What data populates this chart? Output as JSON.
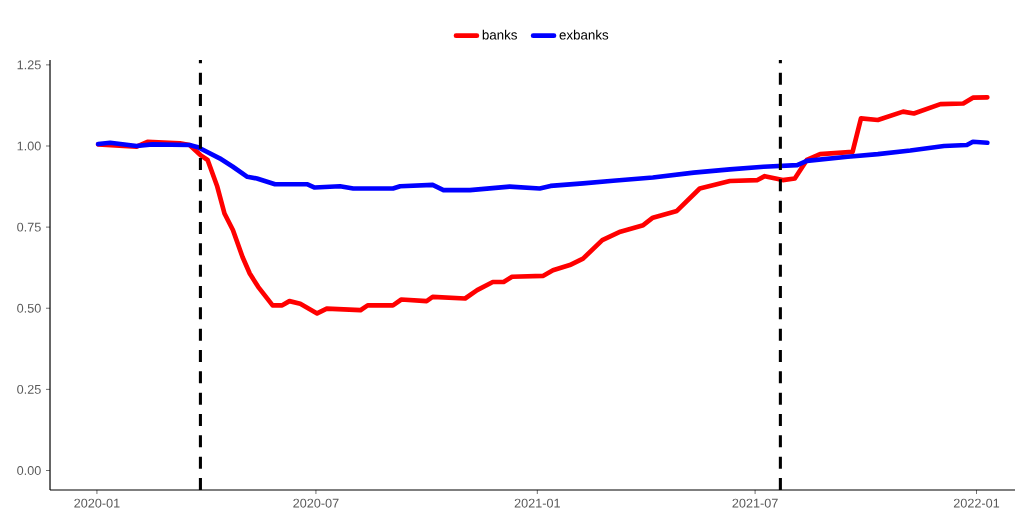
{
  "chart_data": {
    "type": "line",
    "legend": "top",
    "grid": false,
    "marker": "none",
    "line_style": "solid",
    "xlim": [
      "2019-11-23",
      "2022-02-02"
    ],
    "xticks": [
      {
        "value": "2020-01-01",
        "label": "2020-01"
      },
      {
        "value": "2020-07-01",
        "label": "2020-07"
      },
      {
        "value": "2021-01-01",
        "label": "2021-01"
      },
      {
        "value": "2021-07-01",
        "label": "2021-07"
      },
      {
        "value": "2022-01-01",
        "label": "2022-01"
      }
    ],
    "ylim": [
      -0.06,
      1.265
    ],
    "yticks": [
      {
        "value": 0,
        "label": "0.00"
      },
      {
        "value": 0.25,
        "label": "0.25"
      },
      {
        "value": 0.5,
        "label": "0.50"
      },
      {
        "value": 0.75,
        "label": "0.75"
      },
      {
        "value": 1,
        "label": "1.00"
      },
      {
        "value": 1.25,
        "label": "1.25"
      }
    ],
    "ref_lines": [
      {
        "axis": "x",
        "value": "2020-03-27",
        "color": "#000000",
        "line_style": "dashed"
      },
      {
        "axis": "x",
        "value": "2021-07-22",
        "color": "#000000",
        "line_style": "dashed"
      }
    ],
    "series": [
      {
        "name": "banks",
        "color": "#ff0000",
        "x": [
          "2020-01-02",
          "2020-02-03",
          "2020-02-12",
          "2020-03-10",
          "2020-03-18",
          "2020-03-27",
          "2020-04-02",
          "2020-04-10",
          "2020-04-16",
          "2020-04-23",
          "2020-05-01",
          "2020-05-07",
          "2020-05-14",
          "2020-05-26",
          "2020-06-03",
          "2020-06-09",
          "2020-06-18",
          "2020-07-02",
          "2020-07-10",
          "2020-08-07",
          "2020-08-13",
          "2020-09-03",
          "2020-09-10",
          "2020-10-01",
          "2020-10-06",
          "2020-11-02",
          "2020-11-12",
          "2020-11-25",
          "2020-12-04",
          "2020-12-11",
          "2021-01-06",
          "2021-01-14",
          "2021-01-28",
          "2021-02-08",
          "2021-02-24",
          "2021-03-11",
          "2021-03-30",
          "2021-04-07",
          "2021-04-27",
          "2021-05-16",
          "2021-06-10",
          "2021-07-03",
          "2021-07-09",
          "2021-07-24",
          "2021-08-03",
          "2021-08-13",
          "2021-08-24",
          "2021-09-20",
          "2021-09-27",
          "2021-10-11",
          "2021-11-01",
          "2021-11-10",
          "2021-12-02",
          "2021-12-21",
          "2021-12-29",
          "2022-01-10"
        ],
        "values": [
          1.005,
          0.998,
          1.013,
          1.008,
          1.003,
          0.972,
          0.957,
          0.875,
          0.792,
          0.741,
          0.658,
          0.607,
          0.566,
          0.509,
          0.509,
          0.522,
          0.514,
          0.484,
          0.499,
          0.494,
          0.509,
          0.509,
          0.527,
          0.522,
          0.535,
          0.53,
          0.556,
          0.581,
          0.581,
          0.597,
          0.6,
          0.617,
          0.633,
          0.653,
          0.71,
          0.736,
          0.756,
          0.779,
          0.8,
          0.869,
          0.892,
          0.895,
          0.907,
          0.895,
          0.9,
          0.957,
          0.975,
          0.982,
          1.085,
          1.08,
          1.106,
          1.1,
          1.129,
          1.131,
          1.149,
          1.15
        ]
      },
      {
        "name": "exbanks",
        "color": "#0000ff",
        "x": [
          "2020-01-02",
          "2020-01-12",
          "2020-02-03",
          "2020-02-16",
          "2020-03-18",
          "2020-03-25",
          "2020-04-12",
          "2020-04-23",
          "2020-05-05",
          "2020-05-13",
          "2020-05-28",
          "2020-06-24",
          "2020-06-30",
          "2020-07-21",
          "2020-08-01",
          "2020-09-03",
          "2020-09-09",
          "2020-10-06",
          "2020-10-15",
          "2020-11-06",
          "2020-12-09",
          "2021-01-03",
          "2021-01-12",
          "2021-02-08",
          "2021-03-05",
          "2021-04-07",
          "2021-05-11",
          "2021-06-10",
          "2021-07-08",
          "2021-08-05",
          "2021-08-13",
          "2021-09-16",
          "2021-10-11",
          "2021-11-07",
          "2021-12-05",
          "2021-12-24",
          "2021-12-29",
          "2022-01-10"
        ],
        "values": [
          1.006,
          1.01,
          1.0,
          1.005,
          1.003,
          0.996,
          0.962,
          0.936,
          0.905,
          0.9,
          0.882,
          0.882,
          0.872,
          0.876,
          0.869,
          0.869,
          0.876,
          0.88,
          0.864,
          0.864,
          0.875,
          0.869,
          0.877,
          0.885,
          0.893,
          0.903,
          0.918,
          0.928,
          0.936,
          0.941,
          0.954,
          0.967,
          0.975,
          0.986,
          1.0,
          1.003,
          1.013,
          1.01
        ]
      }
    ]
  }
}
